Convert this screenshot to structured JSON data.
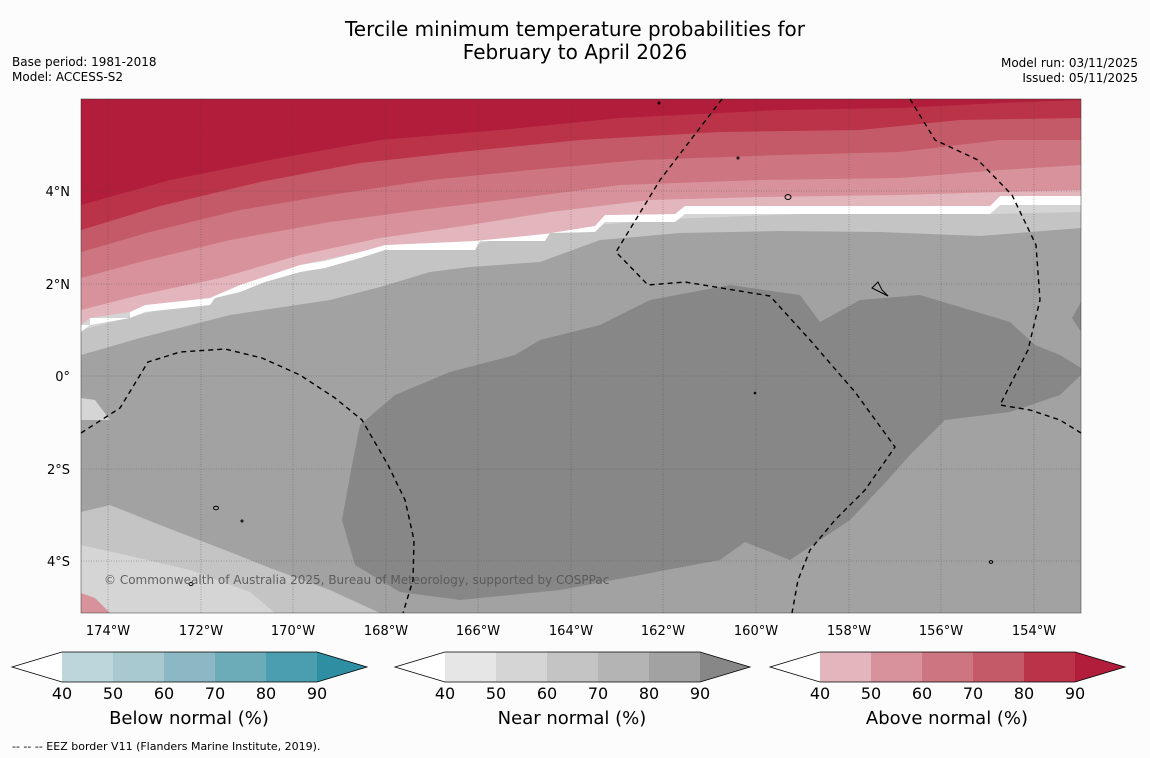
{
  "title": {
    "line1": "Tercile minimum temperature probabilities for",
    "line2": "February to April 2026"
  },
  "meta_left": {
    "base_period": "Base period: 1981-2018",
    "model": "Model: ACCESS-S2"
  },
  "meta_right": {
    "model_run": "Model run: 03/11/2025",
    "issued": "Issued: 05/11/2025"
  },
  "map": {
    "lon_labels": [
      "174°W",
      "172°W",
      "170°W",
      "168°W",
      "166°W",
      "164°W",
      "162°W",
      "160°W",
      "158°W",
      "156°W",
      "154°W"
    ],
    "lat_labels": [
      "4°N",
      "2°N",
      "0°",
      "2°S",
      "4°S"
    ],
    "copyright": "© Commonwealth of Australia 2025, Bureau of Meteorology, supported by COSPPac",
    "ocean_color": "#a2a2a2"
  },
  "colorbars": [
    {
      "id": "below",
      "title": "Below normal (%)",
      "ticks": [
        "40",
        "50",
        "60",
        "70",
        "80",
        "90"
      ],
      "colors": [
        "#ffffff",
        "#bcd6dc",
        "#a7c9cf",
        "#8bb8c4",
        "#6cabb8",
        "#4b9db0",
        "#2e8fa3"
      ]
    },
    {
      "id": "near",
      "title": "Near normal (%)",
      "ticks": [
        "40",
        "50",
        "60",
        "70",
        "80",
        "90"
      ],
      "colors": [
        "#ffffff",
        "#e6e6e6",
        "#d5d5d5",
        "#c4c4c4",
        "#b4b4b4",
        "#a2a2a2",
        "#878787"
      ]
    },
    {
      "id": "above",
      "title": "Above normal (%)",
      "ticks": [
        "40",
        "50",
        "60",
        "70",
        "80",
        "90"
      ],
      "colors": [
        "#ffffff",
        "#e3b5bc",
        "#d8929c",
        "#cd7580",
        "#c45a68",
        "#bb3349",
        "#b11d3a"
      ]
    }
  ],
  "footnote": "--  --  -- EEZ border V11 (Flanders Marine Institute, 2019)."
}
